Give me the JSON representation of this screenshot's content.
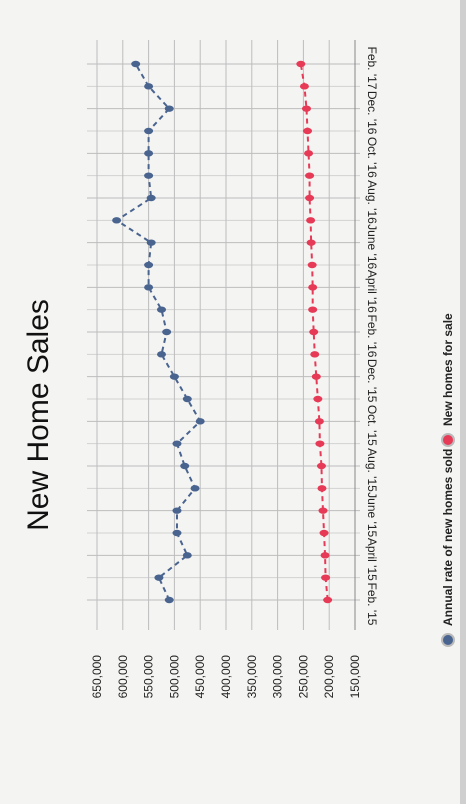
{
  "chart_data": {
    "type": "line",
    "title": "New Home Sales",
    "xlabel": "",
    "ylabel": "",
    "categories": [
      "Feb. '15",
      "April '15",
      "June '15",
      "Aug. '15",
      "Oct. '15",
      "Dec. '15",
      "Feb. '16",
      "April '16",
      "June '16",
      "Aug. '16",
      "Oct. '16",
      "Dec. '16",
      "Feb. '17"
    ],
    "x": [
      0,
      0.5,
      1,
      1.5,
      2,
      2.5,
      3,
      3.5,
      4,
      4.5,
      5,
      5.5,
      6,
      6.5,
      7,
      7.5,
      8,
      8.5,
      9,
      9.5,
      10,
      10.5,
      11,
      11.5,
      12
    ],
    "y_ticks": [
      "150,000",
      "200,000",
      "250,000",
      "300,000",
      "350,000",
      "400,000",
      "450,000",
      "500,000",
      "550,000",
      "600,000",
      "650,000"
    ],
    "ylim": [
      150000,
      650000
    ],
    "grid": true,
    "legend_position": "bottom",
    "series": [
      {
        "name": "Annual rate of new homes sold",
        "color": "#4a6490",
        "values": [
          510000,
          530000,
          475000,
          495000,
          495000,
          460000,
          480000,
          495000,
          450000,
          475000,
          500000,
          525000,
          515000,
          525000,
          550000,
          550000,
          545000,
          612000,
          545000,
          550000,
          550000,
          550000,
          510000,
          550000,
          575000
        ]
      },
      {
        "name": "New homes for sale",
        "color": "#e63a56",
        "values": [
          203000,
          207000,
          208000,
          210000,
          212000,
          214000,
          215000,
          218000,
          219000,
          222000,
          225000,
          228000,
          230000,
          232000,
          232000,
          233000,
          235000,
          236000,
          238000,
          238000,
          240000,
          242000,
          244000,
          248000,
          255000
        ]
      }
    ]
  }
}
